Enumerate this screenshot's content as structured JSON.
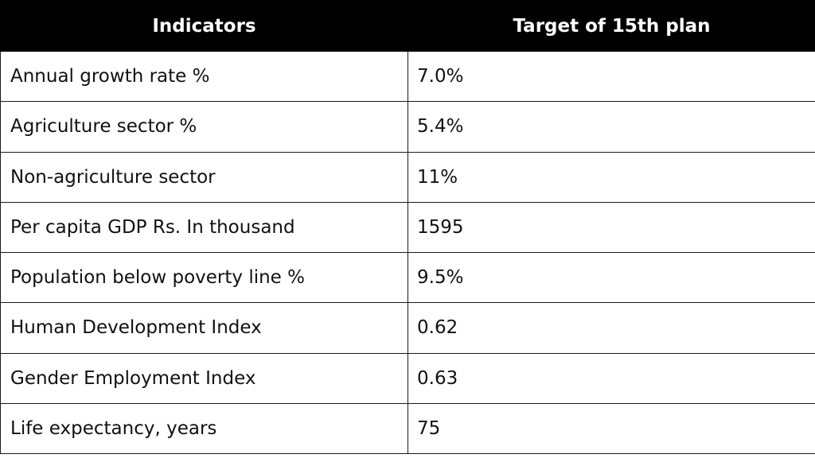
{
  "table": {
    "headers": [
      "Indicators",
      "Target of 15th plan"
    ],
    "rows": [
      {
        "indicator": "Annual growth rate %",
        "target": "7.0%"
      },
      {
        "indicator": "Agriculture sector %",
        "target": "5.4%"
      },
      {
        "indicator": "Non-agriculture sector",
        "target": "11%"
      },
      {
        "indicator": "Per capita GDP Rs. In thousand",
        "target": "1595"
      },
      {
        "indicator": "Population below poverty line %",
        "target": "9.5%"
      },
      {
        "indicator": "Human Development Index",
        "target": "0.62"
      },
      {
        "indicator": "Gender Employment Index",
        "target": "0.63"
      },
      {
        "indicator": "Life expectancy, years",
        "target": "75"
      }
    ]
  },
  "colors": {
    "header_background": "#000000",
    "header_text": "#ffffff",
    "border": "#1a1a1a"
  }
}
